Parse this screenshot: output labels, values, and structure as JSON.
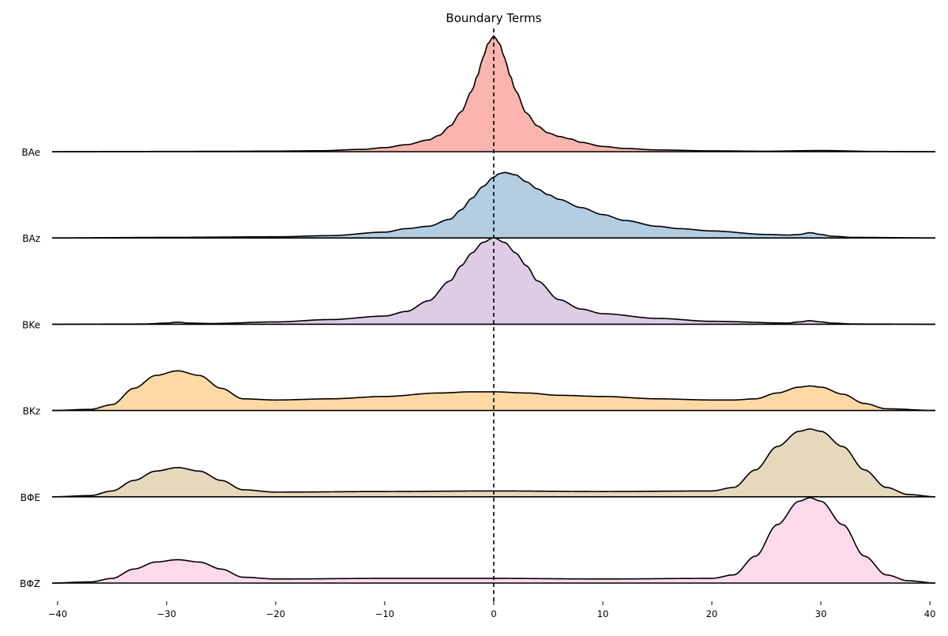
{
  "chart_data": {
    "type": "area",
    "subtype": "ridgeline",
    "title": "Boundary Terms",
    "xlabel": "",
    "ylabel": "",
    "xlim": [
      -40.5,
      40.5
    ],
    "xticks": [
      -40,
      -30,
      -20,
      -10,
      0,
      10,
      20,
      30,
      40
    ],
    "xtick_labels": [
      "−40",
      "−30",
      "−20",
      "−10",
      "0",
      "10",
      "20",
      "30",
      "40"
    ],
    "grid": false,
    "reference_line": {
      "x": 0,
      "style": "dashed",
      "color": "#000000"
    },
    "series": [
      {
        "name": "BAe",
        "color": "#fbb4ae",
        "x": [
          -40.5,
          -35,
          -30,
          -25,
          -20,
          -16,
          -12,
          -10,
          -8,
          -6,
          -5,
          -4,
          -3,
          -2,
          -1.5,
          -1,
          -0.5,
          0,
          0.5,
          1,
          1.5,
          2,
          3,
          4,
          5,
          6,
          7,
          8,
          10,
          12,
          15,
          20,
          25,
          30,
          35,
          40.5
        ],
        "density": [
          0,
          0.001,
          0.002,
          0.003,
          0.005,
          0.008,
          0.02,
          0.035,
          0.06,
          0.1,
          0.14,
          0.22,
          0.34,
          0.52,
          0.65,
          0.8,
          0.93,
          0.99,
          0.93,
          0.8,
          0.65,
          0.52,
          0.33,
          0.22,
          0.16,
          0.13,
          0.11,
          0.08,
          0.045,
          0.028,
          0.015,
          0.007,
          0.004,
          0.01,
          0.002,
          0
        ]
      },
      {
        "name": "BAz",
        "color": "#b3cde3",
        "x": [
          -40.5,
          -30,
          -20,
          -15,
          -10,
          -8,
          -6,
          -4,
          -3,
          -2,
          -1,
          0,
          0.5,
          1,
          2,
          3,
          4,
          5,
          6,
          8,
          10,
          12,
          15,
          17,
          20,
          25,
          27,
          28,
          29,
          30,
          31,
          33,
          40.5
        ],
        "density": [
          0,
          0.005,
          0.01,
          0.02,
          0.05,
          0.08,
          0.1,
          0.16,
          0.24,
          0.34,
          0.44,
          0.52,
          0.55,
          0.56,
          0.54,
          0.48,
          0.42,
          0.37,
          0.33,
          0.26,
          0.2,
          0.15,
          0.1,
          0.08,
          0.06,
          0.03,
          0.025,
          0.03,
          0.045,
          0.03,
          0.015,
          0.005,
          0
        ]
      },
      {
        "name": "BKe",
        "color": "#decbe4",
        "x": [
          -40.5,
          -32,
          -30,
          -29,
          -28,
          -26,
          -20,
          -15,
          -10,
          -8,
          -6,
          -4,
          -3,
          -2,
          -1,
          0,
          1,
          2,
          3,
          4,
          6,
          8,
          10,
          15,
          20,
          27,
          28,
          29,
          30,
          31,
          33,
          40.5
        ],
        "density": [
          0,
          0.002,
          0.01,
          0.018,
          0.01,
          0.006,
          0.02,
          0.04,
          0.07,
          0.11,
          0.2,
          0.37,
          0.5,
          0.61,
          0.7,
          0.74,
          0.7,
          0.61,
          0.5,
          0.37,
          0.21,
          0.13,
          0.09,
          0.05,
          0.025,
          0.01,
          0.02,
          0.03,
          0.02,
          0.01,
          0.002,
          0
        ]
      },
      {
        "name": "BKz",
        "color": "#fed9a6",
        "x": [
          -40.5,
          -37,
          -35,
          -33,
          -31,
          -29,
          -27,
          -25,
          -23,
          -20,
          -15,
          -10,
          -5,
          -2,
          0,
          3,
          6,
          10,
          15,
          20,
          22,
          24,
          26,
          28,
          29,
          30,
          32,
          34,
          36,
          40.5
        ],
        "density": [
          0,
          0.01,
          0.05,
          0.19,
          0.3,
          0.34,
          0.3,
          0.19,
          0.1,
          0.09,
          0.1,
          0.12,
          0.15,
          0.16,
          0.16,
          0.15,
          0.13,
          0.12,
          0.1,
          0.09,
          0.09,
          0.1,
          0.15,
          0.2,
          0.21,
          0.2,
          0.14,
          0.06,
          0.015,
          0
        ]
      },
      {
        "name": "BΦE",
        "color": "#e5d8bd",
        "x": [
          -40.5,
          -37,
          -35,
          -33,
          -31,
          -29,
          -27,
          -25,
          -23,
          -20,
          -10,
          0,
          10,
          20,
          22,
          24,
          26,
          28,
          29,
          30,
          32,
          34,
          36,
          38,
          40.5
        ],
        "density": [
          0,
          0.01,
          0.05,
          0.14,
          0.22,
          0.25,
          0.22,
          0.14,
          0.06,
          0.04,
          0.045,
          0.05,
          0.045,
          0.05,
          0.08,
          0.23,
          0.43,
          0.56,
          0.58,
          0.56,
          0.43,
          0.23,
          0.08,
          0.02,
          0
        ]
      },
      {
        "name": "BΦZ",
        "color": "#fddaec",
        "x": [
          -40.5,
          -37,
          -35,
          -33,
          -31,
          -29,
          -27,
          -25,
          -23,
          -20,
          -10,
          0,
          10,
          20,
          22,
          24,
          26,
          28,
          29,
          30,
          32,
          34,
          36,
          38,
          40.5
        ],
        "density": [
          0,
          0.01,
          0.04,
          0.12,
          0.18,
          0.2,
          0.18,
          0.12,
          0.05,
          0.035,
          0.04,
          0.04,
          0.035,
          0.04,
          0.07,
          0.23,
          0.5,
          0.7,
          0.73,
          0.7,
          0.5,
          0.23,
          0.07,
          0.02,
          0
        ]
      }
    ]
  }
}
